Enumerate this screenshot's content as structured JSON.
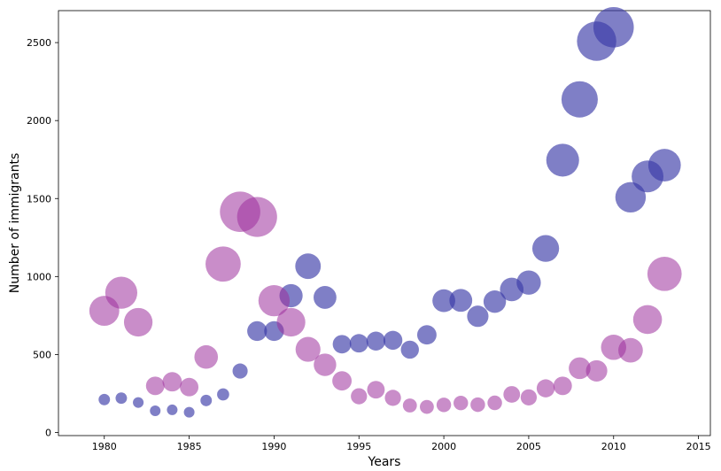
{
  "chart_data": {
    "type": "scatter",
    "title": "",
    "xlabel": "Years",
    "ylabel": "Number of immigrants",
    "xlim": [
      1977.3,
      2015.7
    ],
    "ylim": [
      -20,
      2705
    ],
    "x_ticks": [
      1980,
      1985,
      1990,
      1995,
      2000,
      2005,
      2010,
      2015
    ],
    "y_ticks": [
      0,
      500,
      1000,
      1500,
      2000,
      2500
    ],
    "grid": false,
    "legend": "none",
    "bubble_size_encodes": "relative size of each series value (normalized)",
    "series": [
      {
        "color": "#3b3ba8",
        "opacity": 0.65,
        "points": [
          {
            "x": 1980,
            "y": 211,
            "size": 0.08
          },
          {
            "x": 1981,
            "y": 220,
            "size": 0.08
          },
          {
            "x": 1982,
            "y": 192,
            "size": 0.07
          },
          {
            "x": 1983,
            "y": 139,
            "size": 0.05
          },
          {
            "x": 1984,
            "y": 145,
            "size": 0.05
          },
          {
            "x": 1985,
            "y": 130,
            "size": 0.05
          },
          {
            "x": 1986,
            "y": 205,
            "size": 0.08
          },
          {
            "x": 1987,
            "y": 244,
            "size": 0.09
          },
          {
            "x": 1988,
            "y": 394,
            "size": 0.14
          },
          {
            "x": 1989,
            "y": 650,
            "size": 0.24
          },
          {
            "x": 1990,
            "y": 650,
            "size": 0.24
          },
          {
            "x": 1991,
            "y": 877,
            "size": 0.33
          },
          {
            "x": 1992,
            "y": 1066,
            "size": 0.4
          },
          {
            "x": 1993,
            "y": 866,
            "size": 0.32
          },
          {
            "x": 1994,
            "y": 566,
            "size": 0.21
          },
          {
            "x": 1995,
            "y": 572,
            "size": 0.21
          },
          {
            "x": 1996,
            "y": 586,
            "size": 0.22
          },
          {
            "x": 1997,
            "y": 591,
            "size": 0.22
          },
          {
            "x": 1998,
            "y": 531,
            "size": 0.2
          },
          {
            "x": 1999,
            "y": 626,
            "size": 0.23
          },
          {
            "x": 2000,
            "y": 845,
            "size": 0.32
          },
          {
            "x": 2001,
            "y": 847,
            "size": 0.32
          },
          {
            "x": 2002,
            "y": 745,
            "size": 0.28
          },
          {
            "x": 2003,
            "y": 839,
            "size": 0.31
          },
          {
            "x": 2004,
            "y": 917,
            "size": 0.34
          },
          {
            "x": 2005,
            "y": 961,
            "size": 0.36
          },
          {
            "x": 2006,
            "y": 1180,
            "size": 0.44
          },
          {
            "x": 2007,
            "y": 1746,
            "size": 0.66
          },
          {
            "x": 2008,
            "y": 2136,
            "size": 0.81
          },
          {
            "x": 2009,
            "y": 2509,
            "size": 0.95
          },
          {
            "x": 2010,
            "y": 2598,
            "size": 1.0
          },
          {
            "x": 2011,
            "y": 1508,
            "size": 0.57
          },
          {
            "x": 2012,
            "y": 1642,
            "size": 0.62
          },
          {
            "x": 2013,
            "y": 1714,
            "size": 0.65
          }
        ]
      },
      {
        "color": "#9c2f9c",
        "opacity": 0.55,
        "points": [
          {
            "x": 1980,
            "y": 780,
            "size": 0.55
          },
          {
            "x": 1981,
            "y": 896,
            "size": 0.63
          },
          {
            "x": 1982,
            "y": 707,
            "size": 0.5
          },
          {
            "x": 1983,
            "y": 299,
            "size": 0.21
          },
          {
            "x": 1984,
            "y": 325,
            "size": 0.23
          },
          {
            "x": 1985,
            "y": 291,
            "size": 0.21
          },
          {
            "x": 1986,
            "y": 484,
            "size": 0.34
          },
          {
            "x": 1987,
            "y": 1080,
            "size": 0.76
          },
          {
            "x": 1988,
            "y": 1415,
            "size": 1.0
          },
          {
            "x": 1989,
            "y": 1382,
            "size": 0.98
          },
          {
            "x": 1990,
            "y": 845,
            "size": 0.6
          },
          {
            "x": 1991,
            "y": 707,
            "size": 0.5
          },
          {
            "x": 1992,
            "y": 533,
            "size": 0.38
          },
          {
            "x": 1993,
            "y": 434,
            "size": 0.31
          },
          {
            "x": 1994,
            "y": 331,
            "size": 0.23
          },
          {
            "x": 1995,
            "y": 232,
            "size": 0.16
          },
          {
            "x": 1996,
            "y": 274,
            "size": 0.19
          },
          {
            "x": 1997,
            "y": 222,
            "size": 0.16
          },
          {
            "x": 1998,
            "y": 173,
            "size": 0.12
          },
          {
            "x": 1999,
            "y": 164,
            "size": 0.12
          },
          {
            "x": 2000,
            "y": 177,
            "size": 0.13
          },
          {
            "x": 2001,
            "y": 189,
            "size": 0.13
          },
          {
            "x": 2002,
            "y": 178,
            "size": 0.13
          },
          {
            "x": 2003,
            "y": 190,
            "size": 0.13
          },
          {
            "x": 2004,
            "y": 244,
            "size": 0.17
          },
          {
            "x": 2005,
            "y": 225,
            "size": 0.16
          },
          {
            "x": 2006,
            "y": 283,
            "size": 0.2
          },
          {
            "x": 2007,
            "y": 299,
            "size": 0.21
          },
          {
            "x": 2008,
            "y": 412,
            "size": 0.29
          },
          {
            "x": 2009,
            "y": 395,
            "size": 0.28
          },
          {
            "x": 2010,
            "y": 546,
            "size": 0.39
          },
          {
            "x": 2011,
            "y": 527,
            "size": 0.37
          },
          {
            "x": 2012,
            "y": 724,
            "size": 0.51
          },
          {
            "x": 2013,
            "y": 1017,
            "size": 0.72
          }
        ]
      }
    ]
  }
}
